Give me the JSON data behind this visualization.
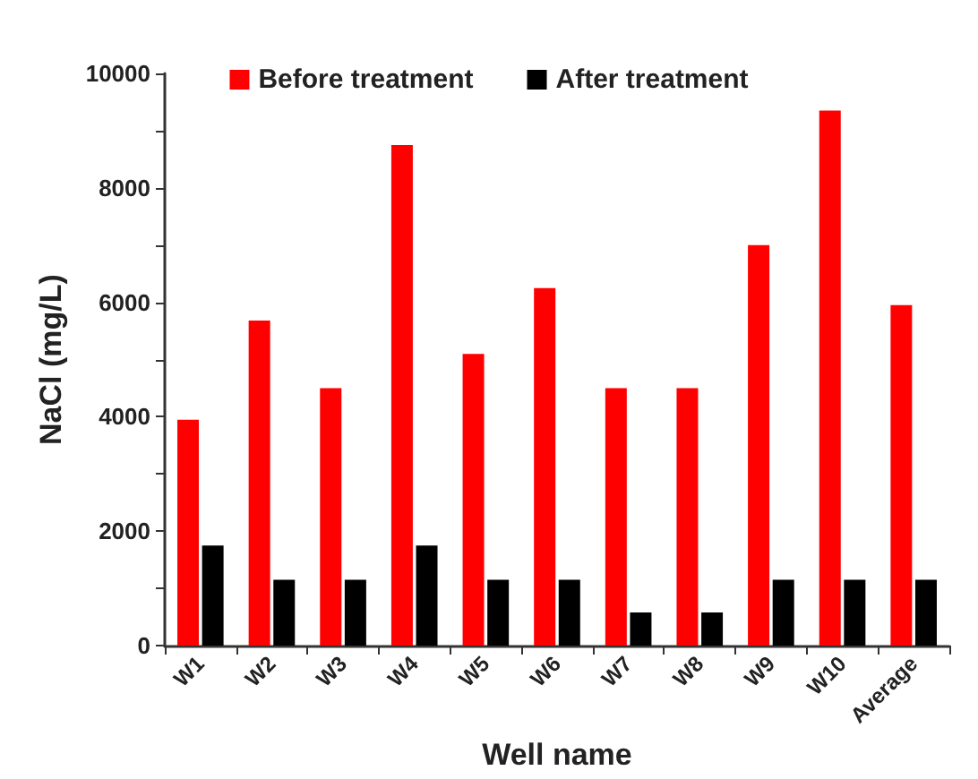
{
  "chart_data": {
    "type": "bar",
    "xlabel": "Well name",
    "ylabel": "NaCl (mg/L)",
    "categories": [
      "W1",
      "W2",
      "W3",
      "W4",
      "W5",
      "W6",
      "W7",
      "W8",
      "W9",
      "W10",
      "Average"
    ],
    "series": [
      {
        "name": "Before treatment",
        "color": "#ff0000",
        "values": [
          3950,
          5680,
          4500,
          8750,
          5100,
          6250,
          4500,
          4500,
          7000,
          9350,
          5950
        ]
      },
      {
        "name": "After treatment",
        "color": "#000000",
        "values": [
          1750,
          1150,
          1150,
          1750,
          1150,
          1150,
          580,
          580,
          1150,
          1150,
          1150
        ]
      }
    ],
    "ylim": [
      0,
      10000
    ],
    "yticks": [
      0,
      {
        "value": 1000,
        "label": null
      },
      2000,
      {
        "value": 3000,
        "label": null
      },
      4000,
      {
        "value": 5000,
        "label": null
      },
      6000,
      {
        "value": 7000,
        "label": null
      },
      8000,
      {
        "value": 9000,
        "label": null
      },
      10000
    ],
    "grid": false,
    "legend": "top"
  }
}
